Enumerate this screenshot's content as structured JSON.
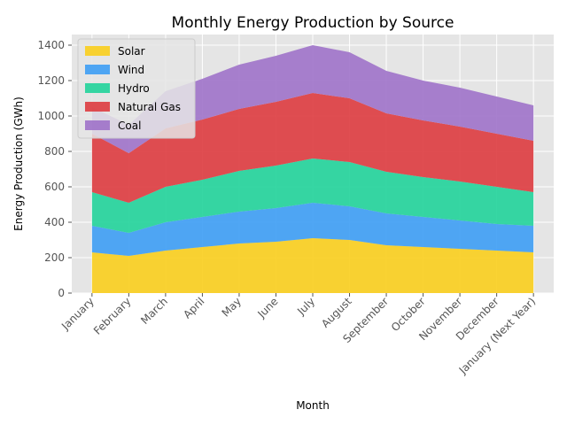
{
  "chart_data": {
    "type": "area",
    "stacked": true,
    "title": "Monthly Energy Production by Source",
    "xlabel": "Month",
    "ylabel": "Energy Production (GWh)",
    "ylim": [
      0,
      1460
    ],
    "yticks": [
      0,
      200,
      400,
      600,
      800,
      1000,
      1200,
      1400
    ],
    "grid": true,
    "legend_position": "top-left",
    "categories": [
      "January",
      "February",
      "March",
      "April",
      "May",
      "June",
      "July",
      "August",
      "September",
      "October",
      "November",
      "December",
      "January (Next Year)"
    ],
    "series": [
      {
        "name": "Solar",
        "color": "#f9ce1d",
        "values": [
          230,
          210,
          240,
          260,
          280,
          290,
          310,
          300,
          270,
          260,
          250,
          240,
          230
        ]
      },
      {
        "name": "Wind",
        "color": "#3d9df4",
        "values": [
          150,
          130,
          160,
          170,
          180,
          190,
          200,
          190,
          180,
          170,
          160,
          150,
          150
        ]
      },
      {
        "name": "Hydro",
        "color": "#21d39a",
        "values": [
          190,
          170,
          200,
          210,
          230,
          240,
          250,
          250,
          235,
          225,
          220,
          210,
          190
        ]
      },
      {
        "name": "Natural Gas",
        "color": "#dd3b3f",
        "values": [
          330,
          280,
          330,
          340,
          350,
          360,
          370,
          360,
          330,
          320,
          310,
          300,
          290
        ]
      },
      {
        "name": "Coal",
        "color": "#9e72c9",
        "values": [
          150,
          160,
          210,
          230,
          250,
          260,
          270,
          260,
          240,
          225,
          220,
          210,
          200
        ]
      }
    ]
  }
}
